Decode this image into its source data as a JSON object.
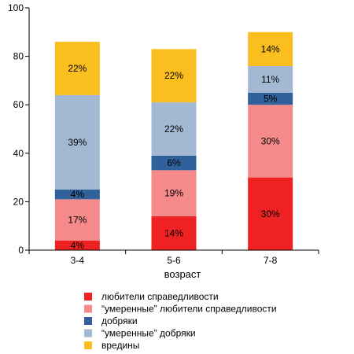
{
  "chart_data": {
    "type": "bar",
    "stacked": true,
    "xlabel": "возраст",
    "ylim": [
      0,
      100
    ],
    "yticks": [
      0,
      20,
      40,
      60,
      80,
      100
    ],
    "categories": [
      "3-4",
      "5-6",
      "7-8"
    ],
    "legend_position": "bottom",
    "series": [
      {
        "name": "любители справедливости",
        "color": "#ee2222",
        "values": [
          4,
          14,
          30
        ],
        "labels": [
          "4%",
          "14%",
          "30%"
        ]
      },
      {
        "name": "“умеренные” любители справедливости",
        "color": "#f58a8a",
        "values": [
          17,
          19,
          30
        ],
        "labels": [
          "17%",
          "19%",
          "30%"
        ]
      },
      {
        "name": "добряки",
        "color": "#30619a",
        "values": [
          4,
          6,
          5
        ],
        "labels": [
          "4%",
          "6%",
          "5%"
        ]
      },
      {
        "name": "“умеренные” добряки",
        "color": "#a3b9d3",
        "values": [
          39,
          22,
          11
        ],
        "labels": [
          "39%",
          "22%",
          "11%"
        ]
      },
      {
        "name": "вредины",
        "color": "#fbbe1f",
        "values": [
          22,
          22,
          14
        ],
        "labels": [
          "22%",
          "22%",
          "14%"
        ]
      }
    ]
  }
}
